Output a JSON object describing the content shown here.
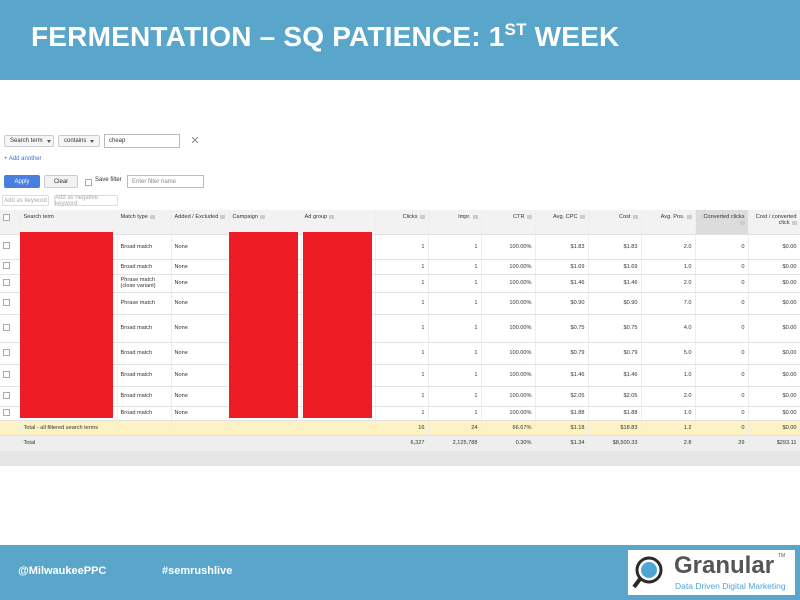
{
  "header": {
    "title": "FERMENTATION – SQ PATIENCE: 1",
    "title_superscript": "ST",
    "title_end": " WEEK"
  },
  "filter": {
    "field": "Search term",
    "operator": "contains",
    "value": "cheap",
    "add_another": "+ Add another",
    "apply": "Apply",
    "clear": "Clear",
    "save_filter": "Save filter",
    "filter_name_placeholder": "Enter filter name",
    "add_keyword": "Add as keyword",
    "add_negative": "Add as negative keyword"
  },
  "table": {
    "columns": [
      "Search term",
      "Match type",
      "Added / Excluded",
      "Campaign",
      "Ad group",
      "Clicks",
      "Impr.",
      "CTR",
      "Avg. CPC",
      "Cost",
      "Avg. Pos.",
      "Converted clicks",
      "Cost / converted click"
    ],
    "rows": [
      [
        null,
        "Broad match",
        "None",
        null,
        null,
        "1",
        "1",
        "100.00%",
        "$1.83",
        "$1.83",
        "2.0",
        "0",
        "$0.00"
      ],
      [
        null,
        "Broad match",
        "None",
        null,
        null,
        "1",
        "1",
        "100.00%",
        "$1.69",
        "$1.69",
        "1.0",
        "0",
        "$0.00"
      ],
      [
        null,
        "Phrase match (close variant)",
        "None",
        null,
        null,
        "1",
        "1",
        "100.00%",
        "$1.46",
        "$1.46",
        "2.0",
        "0",
        "$0.00"
      ],
      [
        null,
        "Phrase match",
        "None",
        null,
        null,
        "1",
        "1",
        "100.00%",
        "$0.90",
        "$0.90",
        "7.0",
        "0",
        "$0.00"
      ],
      [
        null,
        "Broad match",
        "None",
        null,
        null,
        "1",
        "1",
        "100.00%",
        "$0.75",
        "$0.75",
        "4.0",
        "0",
        "$0.00"
      ],
      [
        null,
        "Broad match",
        "None",
        null,
        null,
        "1",
        "1",
        "100.00%",
        "$0.79",
        "$0.79",
        "5.0",
        "0",
        "$0.00"
      ],
      [
        null,
        "Broad match",
        "None",
        null,
        null,
        "1",
        "1",
        "100.00%",
        "$1.46",
        "$1.46",
        "1.0",
        "0",
        "$0.00"
      ],
      [
        null,
        "Broad match",
        "None",
        null,
        null,
        "1",
        "1",
        "100.00%",
        "$2.05",
        "$2.05",
        "2.0",
        "0",
        "$0.00"
      ],
      [
        null,
        "Broad match",
        "None",
        null,
        null,
        "1",
        "1",
        "100.00%",
        "$1.88",
        "$1.88",
        "1.0",
        "0",
        "$0.00"
      ]
    ],
    "total_filtered": [
      "Total - all filtered search terms",
      null,
      null,
      null,
      null,
      "16",
      "24",
      "66.67%",
      "$1.18",
      "$18.83",
      "1.2",
      "0",
      "$0.00"
    ],
    "total": [
      "Total",
      null,
      null,
      null,
      null,
      "6,327",
      "2,125,788",
      "0.30%",
      "$1.34",
      "$8,500.33",
      "2.8",
      "29",
      "$293.11"
    ]
  },
  "footer": {
    "handle": "@MilwaukeePPC",
    "hashtag": "#semrushlive",
    "logo_name": "Granular",
    "logo_tm": "TM",
    "logo_tagline": "Data Driven Digital Marketing"
  }
}
